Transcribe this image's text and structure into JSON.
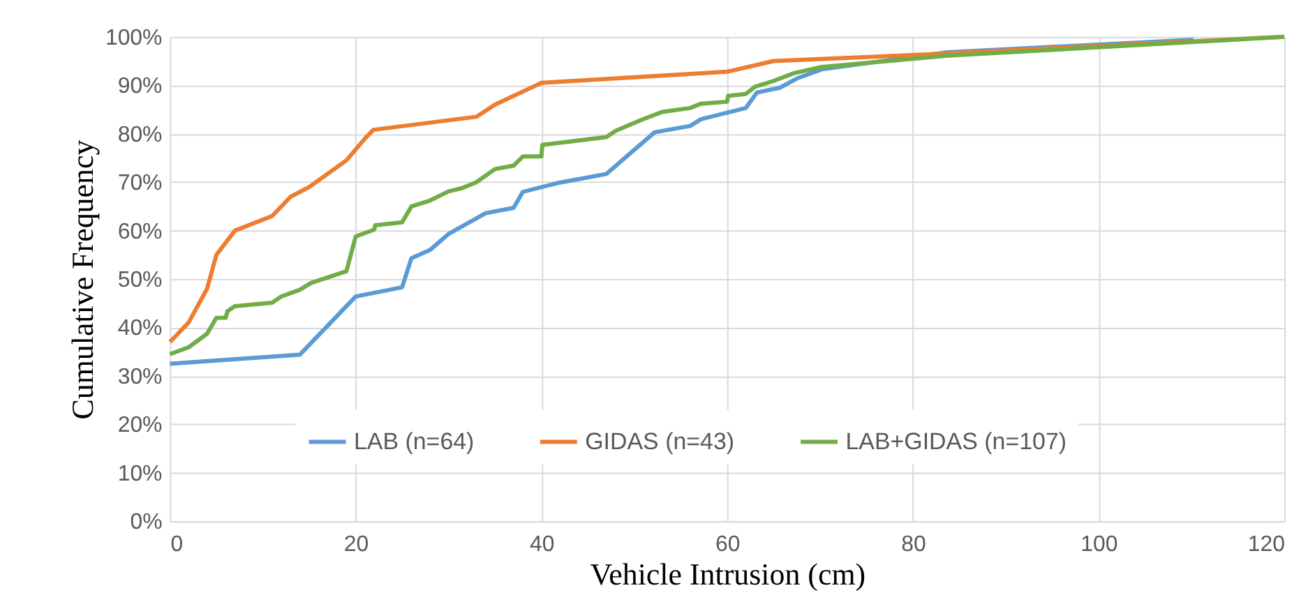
{
  "chart_data": {
    "type": "line",
    "xlabel": "Vehicle Intrusion (cm)",
    "ylabel": "Cumulative Frequency",
    "xlim": [
      0,
      120
    ],
    "xticks": [
      0,
      20,
      40,
      60,
      80,
      100,
      120
    ],
    "ylim": [
      0,
      100
    ],
    "yticks": [
      {
        "value": 0,
        "label": "0%"
      },
      {
        "value": 10,
        "label": "10%"
      },
      {
        "value": 20,
        "label": "20%"
      },
      {
        "value": 30,
        "label": "30%"
      },
      {
        "value": 40,
        "label": "40%"
      },
      {
        "value": 50,
        "label": "50%"
      },
      {
        "value": 60,
        "label": "60%"
      },
      {
        "value": 70,
        "label": "70%"
      },
      {
        "value": 80,
        "label": "80%"
      },
      {
        "value": 90,
        "label": "90%"
      },
      {
        "value": 100,
        "label": "100%"
      }
    ],
    "grid": true,
    "legend": "bottom",
    "marker": "none",
    "line_style": "solid",
    "series": [
      {
        "name": "LAB (n=64)",
        "color": "#5b9bd5",
        "x": [
          0,
          14,
          20,
          25,
          26,
          28,
          30,
          34,
          37,
          38,
          41.7,
          47,
          52.2,
          56,
          57.2,
          62,
          63.2,
          65.7,
          67.5,
          70.2,
          83.7,
          110.2
        ],
        "values": [
          32.5,
          34.4,
          46.4,
          48.3,
          54.3,
          56,
          59.3,
          63.6,
          64.7,
          68,
          69.8,
          71.7,
          80.3,
          81.6,
          83,
          85.3,
          88.5,
          89.5,
          91.4,
          93.3,
          96.8,
          99.4
        ]
      },
      {
        "name": "GIDAS (n=43)",
        "color": "#ed7d31",
        "x": [
          0,
          2,
          4,
          5,
          7,
          11,
          13,
          15,
          19,
          21,
          21.9,
          33,
          35,
          40,
          60,
          65,
          80.7,
          120
        ],
        "values": [
          37,
          41,
          48,
          55,
          60,
          63,
          67,
          69,
          74.5,
          79,
          80.8,
          83.5,
          86,
          90.5,
          92.8,
          95,
          96.3,
          100
        ]
      },
      {
        "name": "LAB+GIDAS (n=107)",
        "color": "#70ad47",
        "x": [
          0,
          2,
          4,
          5,
          6,
          6.2,
          7,
          11,
          12,
          14,
          15.2,
          19,
          20,
          22,
          22.1,
          25,
          26,
          28,
          30,
          31.5,
          33,
          35,
          37,
          38,
          40,
          40.1,
          47,
          48,
          50.7,
          53,
          56,
          57.2,
          60,
          60.1,
          62,
          63,
          65,
          67.2,
          70.2,
          83.7,
          120
        ],
        "values": [
          34.5,
          35.9,
          38.7,
          42,
          42,
          43.4,
          44.4,
          45.1,
          46.4,
          47.8,
          49.2,
          51.6,
          58.8,
          60.2,
          61.1,
          61.7,
          65,
          66.2,
          68.1,
          68.8,
          70,
          72.7,
          73.4,
          75.3,
          75.3,
          77.7,
          79.3,
          80.6,
          82.8,
          84.5,
          85.3,
          86.2,
          86.6,
          87.8,
          88.2,
          89.7,
          90.9,
          92.5,
          93.8,
          96.1,
          100
        ]
      }
    ]
  }
}
